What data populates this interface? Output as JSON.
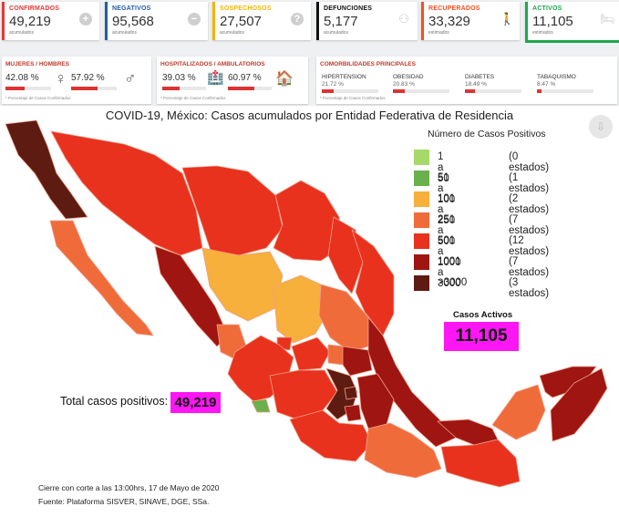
{
  "cards": [
    {
      "label": "CONFIRMADOS",
      "value": "49,219",
      "sub": "acumulados",
      "color": "#e53935",
      "icon": "plus-circle-icon",
      "glyph": "+"
    },
    {
      "label": "NEGATIVOS",
      "value": "95,568",
      "sub": "acumulados",
      "color": "#1e5fa8",
      "icon": "minus-circle-icon",
      "glyph": "−"
    },
    {
      "label": "SOSPECHOSOS",
      "value": "27,507",
      "sub": "acumulados",
      "color": "#f4b400",
      "icon": "question-circle-icon",
      "glyph": "?"
    },
    {
      "label": "DEFUNCIONES",
      "value": "5,177",
      "sub": "acumulados",
      "color": "#111111",
      "icon": "people-icon",
      "glyph": "⚇"
    },
    {
      "label": "RECUPERADOS",
      "value": "33,329",
      "sub": "estimados",
      "color": "#f4511e",
      "icon": "walking-person-icon",
      "glyph": "🚶"
    },
    {
      "label": "ACTIVOS",
      "value": "11,105",
      "sub": "estimados",
      "color": "#1fa84f",
      "icon": "hospital-bed-icon",
      "glyph": "🛏"
    }
  ],
  "sex_panel": {
    "title": "MUJERES / HOMBRES",
    "women_pct": "42.08 %",
    "men_pct": "57.92 %",
    "women_fraction": 0.4208,
    "men_fraction": 0.5792,
    "note": "* Porcentaje de Casos Confirmados",
    "women_icon": "female-icon",
    "men_icon": "male-icon",
    "women_glyph": "♀",
    "men_glyph": "♂"
  },
  "hosp_panel": {
    "title": "HOSPITALIZADOS / AMBULATORIOS",
    "hosp_pct": "39.03 %",
    "amb_pct": "60.97 %",
    "hosp_fraction": 0.3903,
    "amb_fraction": 0.6097,
    "note": "* Porcentaje de Casos Confirmados",
    "hosp_icon": "hospital-icon",
    "amb_icon": "house-icon",
    "hosp_glyph": "🏥",
    "amb_glyph": "🏠"
  },
  "comorb_panel": {
    "title": "COMORBILIDADES PRINCIPALES",
    "note": "* Porcentaje de Casos Confirmados",
    "items": [
      {
        "label": "HIPERTENSION",
        "value": "21.72 %",
        "fraction": 0.2172
      },
      {
        "label": "OBESIDAD",
        "value": "20.83 %",
        "fraction": 0.2083
      },
      {
        "label": "DIABETES",
        "value": "18.49 %",
        "fraction": 0.1849
      },
      {
        "label": "TABAQUISMO",
        "value": "8.47 %",
        "fraction": 0.0847
      }
    ]
  },
  "map": {
    "title": "COVID-19, México: Casos acumulados por Entidad Federativa de Residencia",
    "legend_title": "Número de Casos Positivos",
    "legend": [
      {
        "range": "1 a 50",
        "count": "(0 estados)",
        "color": "#a6d96a"
      },
      {
        "range": "51 a 100",
        "count": "(1 estados)",
        "color": "#6ab04c"
      },
      {
        "range": "101 a 250",
        "count": "(2 estados)",
        "color": "#f6b03b"
      },
      {
        "range": "251 a 500",
        "count": "(7 estados)",
        "color": "#ef6c3a"
      },
      {
        "range": "501 a 1000",
        "count": "(12 estados)",
        "color": "#e8321e"
      },
      {
        "range": "1001 a 3000",
        "count": "(7 estados)",
        "color": "#9e1512"
      },
      {
        "range": ">3000",
        "count": "(3 estados)",
        "color": "#5e1b12"
      }
    ],
    "active_label": "Casos Activos",
    "active_value": "11,105",
    "total_label": "Total casos positivos:",
    "total_value": "49,219",
    "footer_cutoff": "Cierre con corte a las 13:00hrs, 17 de Mayo de 2020",
    "footer_source": "Fuente: Plataforma SISVER, SINAVE, DGE, SSa.",
    "download_icon": "download-icon",
    "download_glyph": "⇩"
  }
}
